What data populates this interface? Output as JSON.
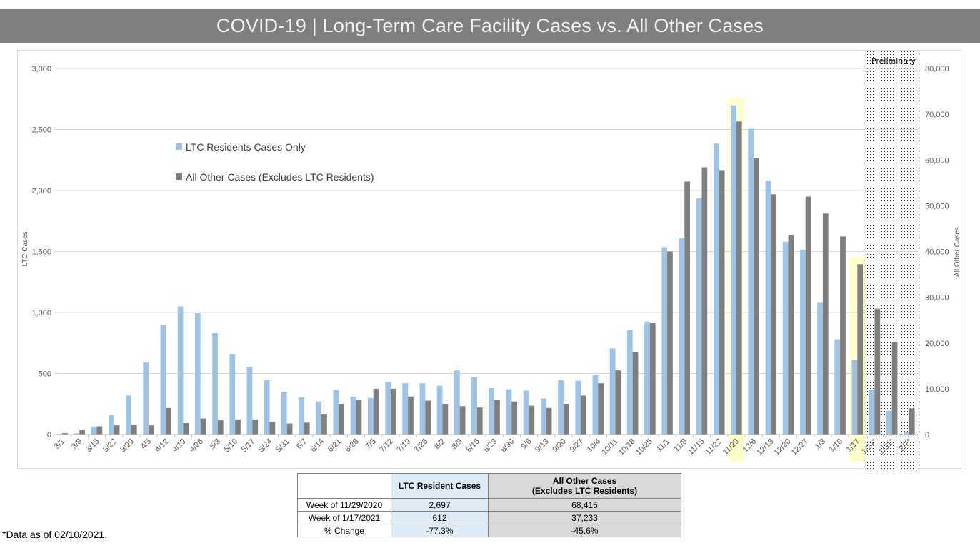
{
  "header": {
    "title": "COVID-19 | Long-Term Care Facility Cases vs. All Other Cases"
  },
  "chart_data": {
    "type": "bar",
    "title": "COVID-19 | Long-Term Care Facility Cases vs. All Other Cases",
    "xlabel": "",
    "ylabel": "LTC Cases",
    "y2label": "All Other Cases",
    "ylim": [
      0,
      3000
    ],
    "y2lim": [
      0,
      80000
    ],
    "yticks": [
      "0",
      "500",
      "1,000",
      "1,500",
      "2,000",
      "2,500",
      "3,000"
    ],
    "yticks_values": [
      0,
      500,
      1000,
      1500,
      2000,
      2500,
      3000
    ],
    "y2ticks": [
      "0",
      "10,000",
      "20,000",
      "30,000",
      "40,000",
      "50,000",
      "60,000",
      "70,000",
      "80,000"
    ],
    "y2ticks_values": [
      0,
      10000,
      20000,
      30000,
      40000,
      50000,
      60000,
      70000,
      80000
    ],
    "grid": true,
    "legend_position": "upper-left inside plot",
    "categories": [
      "3/1",
      "3/8",
      "3/15",
      "3/22",
      "3/29",
      "4/5",
      "4/12",
      "4/19",
      "4/26",
      "5/3",
      "5/10",
      "5/17",
      "5/24",
      "5/31",
      "6/7",
      "6/14",
      "6/21",
      "6/28",
      "7/5",
      "7/12",
      "7/19",
      "7/26",
      "8/2",
      "8/9",
      "8/16",
      "8/23",
      "8/30",
      "9/6",
      "9/13",
      "9/20",
      "9/27",
      "10/4",
      "10/11",
      "10/18",
      "10/25",
      "11/1",
      "11/8",
      "11/15",
      "11/22",
      "11/29",
      "12/6",
      "12/13",
      "12/20",
      "12/27",
      "1/3",
      "1/10",
      "1/17",
      "1/24*",
      "1/31*",
      "2/7*"
    ],
    "highlighted_categories": [
      "11/29",
      "1/17"
    ],
    "preliminary_categories": [
      "1/24*",
      "1/31*",
      "2/7*"
    ],
    "preliminary_label": "Preliminary",
    "series": [
      {
        "name": "LTC Residents Cases Only",
        "axis": "left",
        "color": "#9dc3e6",
        "values": [
          5,
          10,
          65,
          160,
          320,
          590,
          895,
          1050,
          995,
          830,
          660,
          555,
          445,
          350,
          305,
          270,
          365,
          310,
          300,
          430,
          420,
          420,
          400,
          525,
          470,
          380,
          370,
          360,
          295,
          445,
          440,
          485,
          705,
          855,
          925,
          1535,
          1610,
          1935,
          2385,
          2697,
          2505,
          2080,
          1580,
          1515,
          1085,
          780,
          612,
          365,
          195,
          25
        ]
      },
      {
        "name": "All Other Cases (Excludes LTC Residents)",
        "axis": "right",
        "color": "#7f7f7f",
        "values": [
          300,
          1000,
          1800,
          2000,
          2200,
          2000,
          5800,
          2500,
          3500,
          3100,
          3300,
          3300,
          2700,
          2400,
          2600,
          4500,
          6700,
          7600,
          10000,
          10000,
          8300,
          7400,
          6700,
          6200,
          5900,
          7500,
          7200,
          6300,
          5800,
          6700,
          8500,
          11200,
          14000,
          18000,
          24400,
          40000,
          55300,
          58400,
          57800,
          68415,
          60500,
          52500,
          43500,
          52000,
          48300,
          43300,
          37233,
          27500,
          20200,
          5700
        ]
      }
    ]
  },
  "summary_table": {
    "headers": [
      "",
      "LTC Resident Cases",
      "All Other Cases",
      "(Excludes LTC Residents)"
    ],
    "rows": [
      {
        "label": "Week of 11/29/2020",
        "ltc": "2,697",
        "other": "68,415"
      },
      {
        "label": "Week of 1/17/2021",
        "ltc": "612",
        "other": "37,233"
      },
      {
        "label": "% Change",
        "ltc": "-77.3%",
        "other": "-45.6%"
      }
    ]
  },
  "footnote": "*Data as of 02/10/2021.",
  "colors": {
    "ltc_bar": "#9dc3e6",
    "other_bar": "#7f7f7f",
    "highlight": "#ffffcc",
    "title_bar": "#7f7f7f",
    "grid": "#d9d9d9"
  }
}
